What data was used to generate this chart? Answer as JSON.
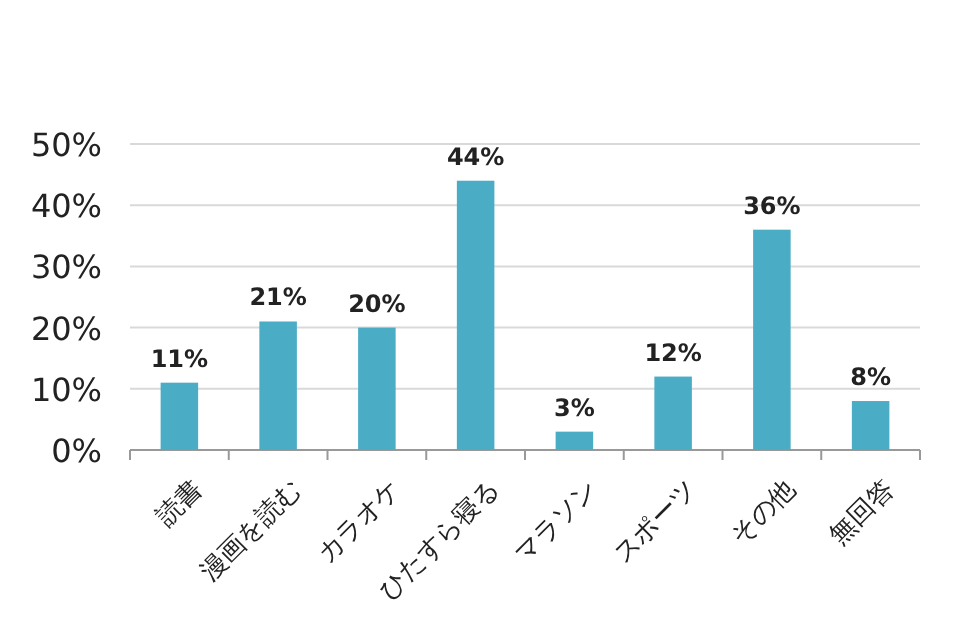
{
  "chart_data": {
    "type": "bar",
    "categories": [
      "読書",
      "漫画を読む",
      "カラオケ",
      "ひたすら寝る",
      "マラソン",
      "スポーツ",
      "その他",
      "無回答"
    ],
    "values": [
      11,
      21,
      20,
      44,
      3,
      12,
      36,
      8
    ],
    "value_labels": [
      "11%",
      "21%",
      "20%",
      "44%",
      "3%",
      "12%",
      "36%",
      "8%"
    ],
    "color": "#4bacc6",
    "ylim": [
      0,
      50
    ],
    "yticks": [
      {
        "value": 0,
        "label": "0%"
      },
      {
        "value": 10,
        "label": "10%"
      },
      {
        "value": 20,
        "label": "20%"
      },
      {
        "value": 30,
        "label": "30%"
      },
      {
        "value": 40,
        "label": "40%"
      },
      {
        "value": 50,
        "label": "50%"
      }
    ],
    "grid": "y"
  }
}
